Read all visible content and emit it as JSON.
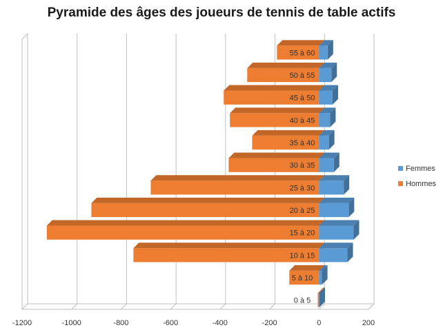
{
  "colors": {
    "femmes": "#5B9BD5",
    "hommes": "#ED7D31",
    "grid": "#bfbfbf"
  },
  "chart_data": {
    "type": "bar",
    "orientation": "horizontal",
    "title": "Pyramide des âges des joueurs de tennis de table actifs",
    "categories": [
      "0 à 5",
      "5 à 10",
      "10 à 15",
      "15 à 20",
      "20 à 25",
      "25 à 30",
      "30 à 35",
      "35 à 40",
      "40 à 45",
      "45 à 50",
      "50 à 55",
      "55 à 60"
    ],
    "series": [
      {
        "name": "Femmes",
        "values": [
          2,
          12,
          115,
          140,
          120,
          100,
          60,
          40,
          45,
          55,
          50,
          35
        ]
      },
      {
        "name": "Hommes",
        "values": [
          -5,
          -120,
          -750,
          -1100,
          -920,
          -680,
          -365,
          -270,
          -360,
          -385,
          -290,
          -170
        ]
      }
    ],
    "xlim": [
      -1200,
      200
    ],
    "xticks": [
      -1200,
      -1000,
      -800,
      -600,
      -400,
      -200,
      0,
      200
    ],
    "grid": true,
    "legend": "right",
    "style": "3d"
  }
}
